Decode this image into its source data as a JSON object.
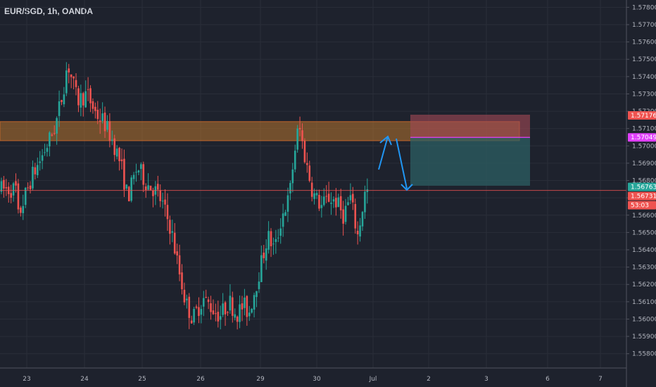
{
  "header": {
    "symbol_label": "EUR/SGD, 1h, OANDA"
  },
  "colors": {
    "background": "#1e222d",
    "bull": "#26a69a",
    "bear": "#ef5350",
    "grid": "#2a2e39",
    "axis_text": "#b2b5be",
    "zone_fill": "#b8742e",
    "stop_fill": "#a34a55",
    "target_fill": "#2c5f63",
    "entry_line": "#e040fb",
    "arrow": "#2196f3",
    "current_line": "#ef5350"
  },
  "chart_data": {
    "type": "candlestick",
    "title": "EUR/SGD, 1h, OANDA",
    "y_range": [
      1.5575,
      1.5783
    ],
    "y_ticks": [
      "1.57800",
      "1.57700",
      "1.57600",
      "1.57500",
      "1.57400",
      "1.57300",
      "1.57200",
      "1.57100",
      "1.57000",
      "1.56900",
      "1.56800",
      "1.56700",
      "1.56600",
      "1.56500",
      "1.56400",
      "1.56300",
      "1.56200",
      "1.56100",
      "1.56000",
      "1.55900",
      "1.55800"
    ],
    "x_ticks": [
      {
        "label": "23",
        "slot": 0
      },
      {
        "label": "24",
        "slot": 1
      },
      {
        "label": "25",
        "slot": 2
      },
      {
        "label": "26",
        "slot": 3
      },
      {
        "label": "29",
        "slot": 4
      },
      {
        "label": "30",
        "slot": 5
      },
      {
        "label": "Jul",
        "slot": 6
      },
      {
        "label": "2",
        "slot": 7
      },
      {
        "label": "3",
        "slot": 8
      },
      {
        "label": "6",
        "slot": 9
      },
      {
        "label": "7",
        "slot": 10
      }
    ],
    "candles_anchor": [
      [
        "06-22 19:00",
        1.5655
      ],
      [
        "06-22 22:00",
        1.5668
      ],
      [
        "06-23 02:00",
        1.5682
      ],
      [
        "06-23 05:00",
        1.569
      ],
      [
        "06-23 09:00",
        1.5702
      ],
      [
        "06-23 12:00",
        1.5712
      ],
      [
        "06-23 15:00",
        1.5731
      ],
      [
        "06-23 17:00",
        1.5748
      ],
      [
        "06-23 21:00",
        1.5726
      ],
      [
        "06-24 01:00",
        1.573
      ],
      [
        "06-24 05:00",
        1.5718
      ],
      [
        "06-24 08:00",
        1.5714
      ],
      [
        "06-24 12:00",
        1.5702
      ],
      [
        "06-24 15:00",
        1.569
      ],
      [
        "06-24 18:00",
        1.567
      ],
      [
        "06-24 22:00",
        1.5688
      ],
      [
        "06-25 02:00",
        1.5678
      ],
      [
        "06-25 05:00",
        1.5675
      ],
      [
        "06-25 08:00",
        1.5668
      ],
      [
        "06-25 12:00",
        1.5652
      ],
      [
        "06-25 15:00",
        1.563
      ],
      [
        "06-25 18:00",
        1.561
      ],
      [
        "06-25 21:00",
        1.56
      ],
      [
        "06-26 01:00",
        1.5612
      ],
      [
        "06-26 05:00",
        1.5606
      ],
      [
        "06-26 08:00",
        1.5602
      ],
      [
        "06-26 12:00",
        1.561
      ],
      [
        "06-26 15:00",
        1.5603
      ],
      [
        "06-26 18:00",
        1.5608
      ],
      [
        "06-26 20:00",
        1.5603
      ],
      [
        "06-29 00:00",
        1.563
      ],
      [
        "06-29 03:00",
        1.5648
      ],
      [
        "06-29 06:00",
        1.564
      ],
      [
        "06-29 09:00",
        1.566
      ],
      [
        "06-29 12:00",
        1.567
      ],
      [
        "06-29 14:00",
        1.5695
      ],
      [
        "06-29 16:00",
        1.5712
      ],
      [
        "06-29 19:00",
        1.569
      ],
      [
        "06-29 22:00",
        1.5672
      ],
      [
        "06-30 02:00",
        1.5665
      ],
      [
        "06-30 05:00",
        1.567
      ],
      [
        "06-30 08:00",
        1.5668
      ],
      [
        "06-30 11:00",
        1.566
      ],
      [
        "06-30 14:00",
        1.567
      ],
      [
        "06-30 17:00",
        1.5648
      ],
      [
        "06-30 20:00",
        1.5672
      ],
      [
        "06-30 22:00",
        1.5675
      ]
    ],
    "resistance_zone": {
      "top": 1.5714,
      "bottom": 1.5703
    },
    "position_box": {
      "stop": 1.5718,
      "entry": 1.57049,
      "target": 1.5677
    },
    "current_price": 1.56743,
    "price_labels": [
      {
        "text": "1.57176",
        "color": "#ef5350",
        "price": 1.57176
      },
      {
        "text": "1.57049",
        "color": "#e040fb",
        "price": 1.57049
      },
      {
        "text": "1.56763",
        "color": "#26a69a",
        "price": 1.56763
      },
      {
        "text": "1.56731",
        "color": "#ef5350",
        "price": 1.56731
      },
      {
        "text": "53:03",
        "color": "#ef5350",
        "price": 1.56695
      }
    ]
  }
}
